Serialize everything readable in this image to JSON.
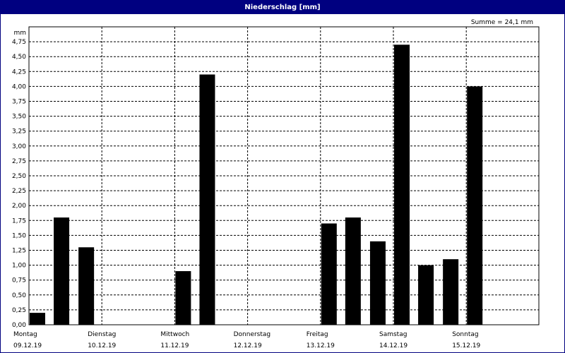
{
  "window": {
    "title": "Niederschlag [mm]"
  },
  "summary": {
    "text": "Summe = 24,1 mm"
  },
  "chart_data": {
    "type": "bar",
    "title": "Niederschlag [mm]",
    "ylabel": "mm",
    "ylim": [
      0,
      5
    ],
    "y_ticks": [
      "0,00",
      "0,25",
      "0,50",
      "0,75",
      "1,00",
      "1,25",
      "1,50",
      "1,75",
      "2,00",
      "2,25",
      "2,50",
      "2,75",
      "3,00",
      "3,25",
      "3,50",
      "3,75",
      "4,00",
      "4,25",
      "4,50",
      "4,75"
    ],
    "grid": true,
    "days": [
      {
        "name": "Montag",
        "date": "09.12.19"
      },
      {
        "name": "Dienstag",
        "date": "10.12.19"
      },
      {
        "name": "Mittwoch",
        "date": "11.12.19"
      },
      {
        "name": "Donnerstag",
        "date": "12.12.19"
      },
      {
        "name": "Freitag",
        "date": "13.12.19"
      },
      {
        "name": "Samstag",
        "date": "14.12.19"
      },
      {
        "name": "Sonntag",
        "date": "15.12.19"
      }
    ],
    "bars": [
      {
        "day_offset": 0.0,
        "value": 0.2
      },
      {
        "day_offset": 0.33,
        "value": 1.8
      },
      {
        "day_offset": 0.67,
        "value": 1.3
      },
      {
        "day_offset": 2.0,
        "value": 0.9
      },
      {
        "day_offset": 2.33,
        "value": 4.2
      },
      {
        "day_offset": 4.0,
        "value": 1.7
      },
      {
        "day_offset": 4.33,
        "value": 1.8
      },
      {
        "day_offset": 4.67,
        "value": 1.4
      },
      {
        "day_offset": 5.0,
        "value": 4.7
      },
      {
        "day_offset": 5.33,
        "value": 1.0
      },
      {
        "day_offset": 5.67,
        "value": 1.1
      },
      {
        "day_offset": 6.0,
        "value": 4.0
      }
    ],
    "bar_color": "#000000"
  }
}
